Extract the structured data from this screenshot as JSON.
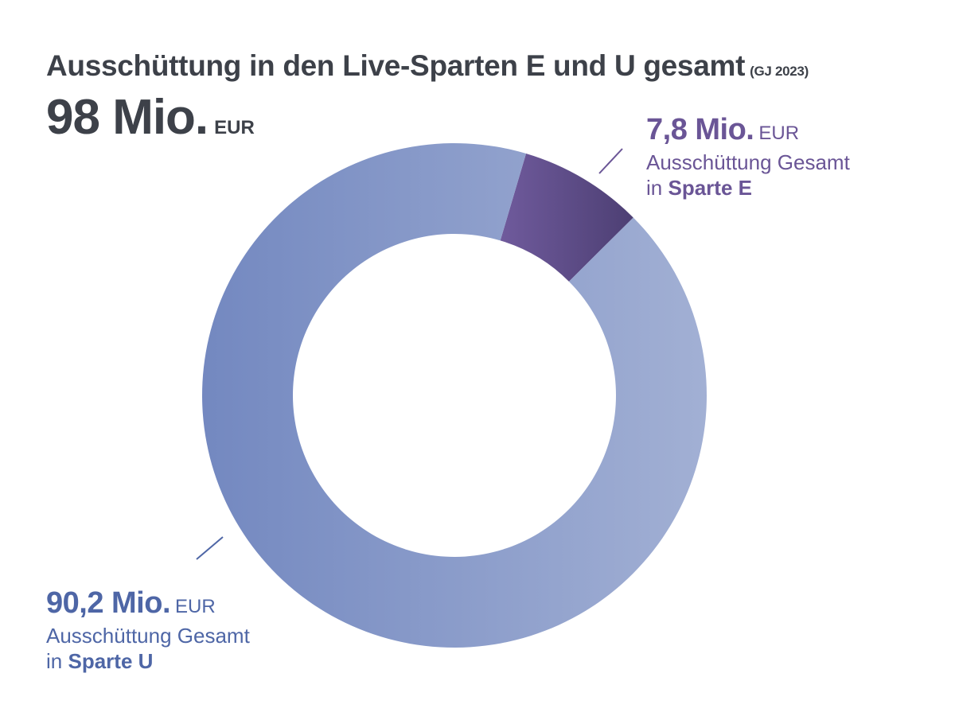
{
  "title": {
    "main": "Ausschüttung in den Live-Sparten E und U gesamt",
    "suffix": "(GJ 2023)"
  },
  "total": {
    "value": "98 Mio.",
    "unit": "EUR"
  },
  "labels": {
    "e": {
      "amount": "7,8 Mio.",
      "unit": "EUR",
      "line1": "Ausschüttung Gesamt",
      "line2_prefix": "in",
      "line2_bold": "Sparte E"
    },
    "u": {
      "amount": "90,2 Mio.",
      "unit": "EUR",
      "line1": "Ausschüttung Gesamt",
      "line2_prefix": "in",
      "line2_bold": "Sparte U"
    }
  },
  "chart_data": {
    "type": "pie",
    "variant": "donut",
    "title": "Ausschüttung in den Live-Sparten E und U gesamt (GJ 2023)",
    "total": 98,
    "unit": "Mio. EUR",
    "slices": [
      {
        "name": "Sparte E",
        "value": 7.8,
        "colors": [
          "#6f5a9c",
          "#4a3d70"
        ]
      },
      {
        "name": "Sparte U",
        "value": 90.2,
        "colors": [
          "#7388c0",
          "#a2b0d4"
        ]
      }
    ]
  }
}
